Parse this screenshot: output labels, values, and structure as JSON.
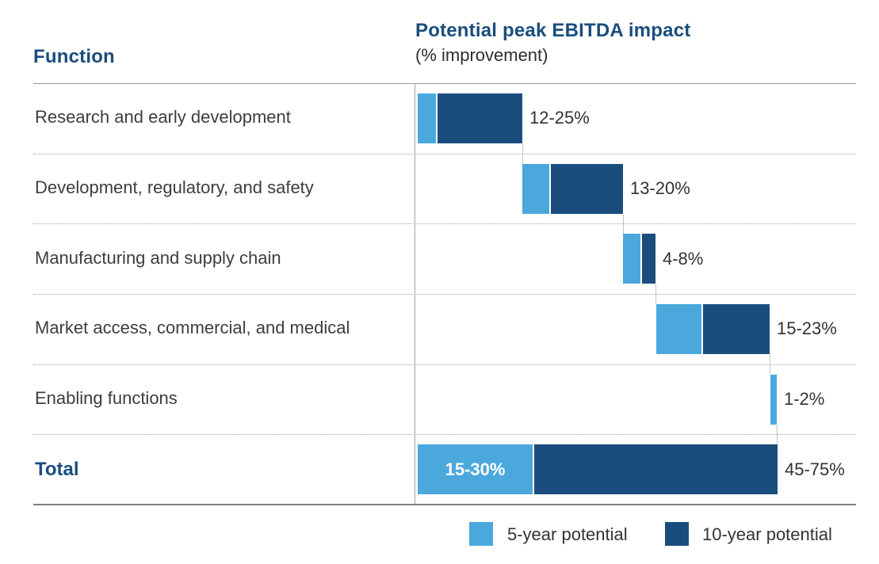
{
  "header": {
    "row_header": "Function",
    "title": "Potential peak EBITDA impact",
    "subtitle": "(% improvement)"
  },
  "colors": {
    "five_year": "#4ba8dd",
    "ten_year": "#1a4d7d",
    "heading_text": "#1a4d7d",
    "body_text": "#3d3d3d",
    "value_text": "#333333",
    "total_inner_label_text": "#ffffff",
    "solid_line": "#9c9c9c",
    "bottom_line": "#7f7f7f",
    "dotted_line": "#a3a3a3",
    "connector_line": "#c4c4c4",
    "background": "#ffffff"
  },
  "legend": [
    {
      "label": "5-year potential",
      "color": "#4ba8dd"
    },
    {
      "label": "10-year potential",
      "color": "#1a4d7d"
    }
  ],
  "chart_data": {
    "type": "bar",
    "variant": "horizontal-waterfall",
    "title": "Potential peak EBITDA impact",
    "subtitle": "(% improvement)",
    "category_header": "Function",
    "unit": "% improvement",
    "legend_entries": [
      "5-year potential",
      "10-year potential"
    ],
    "legend_position": "bottom-right",
    "grid": "off",
    "axis": {
      "min": 0,
      "max": 75,
      "ticks_shown": false
    },
    "rows": [
      {
        "label": "Research and early development",
        "range_label": "12-25%",
        "range_pct": [
          12,
          25
        ],
        "bar": {
          "start": 4,
          "five": 23,
          "ten": 107
        }
      },
      {
        "label": "Development, regulatory, and safety",
        "range_label": "13-20%",
        "range_pct": [
          13,
          20
        ],
        "bar": {
          "start": 136,
          "five": 34,
          "ten": 91
        }
      },
      {
        "label": "Manufacturing and supply chain",
        "range_label": "4-8%",
        "range_pct": [
          4,
          8
        ],
        "bar": {
          "start": 263,
          "five": 22,
          "ten": 17
        }
      },
      {
        "label": "Market access, commercial, and medical",
        "range_label": "15-23%",
        "range_pct": [
          15,
          23
        ],
        "bar": {
          "start": 305,
          "five": 57,
          "ten": 84
        }
      },
      {
        "label": "Enabling functions",
        "range_label": "1-2%",
        "range_pct": [
          1,
          2
        ],
        "bar": {
          "start": 449,
          "five": 8,
          "ten": 0
        }
      }
    ],
    "total": {
      "label": "Total",
      "range_label": "45-75%",
      "range_pct": [
        45,
        75
      ],
      "five_year_label": "15-30%",
      "five_year_range_pct": [
        15,
        30
      ],
      "bar": {
        "start": 4,
        "five": 145,
        "ten": 307
      }
    }
  }
}
